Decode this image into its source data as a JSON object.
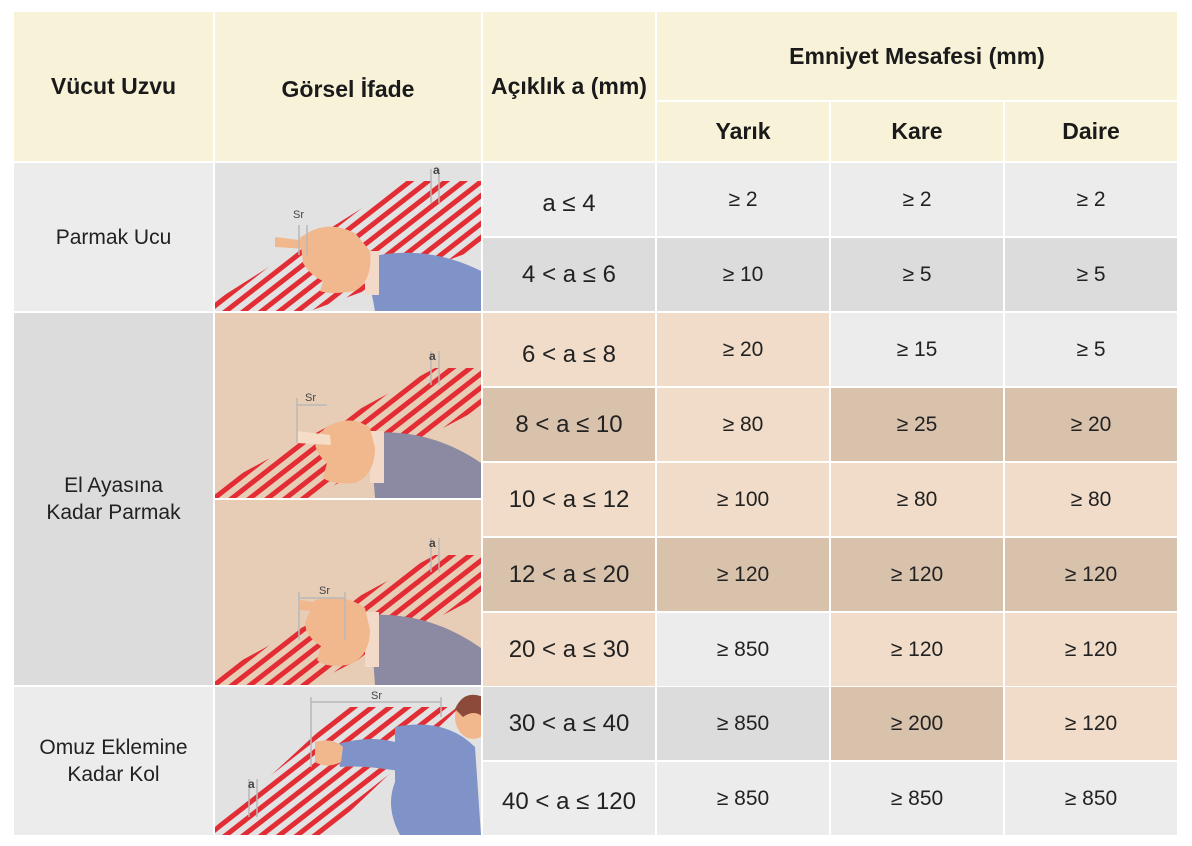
{
  "header": {
    "col_body_part": "Vücut Uzvu",
    "col_visual": "Görsel İfade",
    "col_opening": "Açıklık a (mm)",
    "col_safety": "Emniyet Mesafesi (mm)",
    "sub_slot": "Yarık",
    "sub_square": "Kare",
    "sub_round": "Daire"
  },
  "groups": [
    {
      "label": "Parmak Ucu"
    },
    {
      "label": "El Ayasına Kadar Parmak"
    },
    {
      "label": "Omuz Eklemine Kadar Kol"
    }
  ],
  "illustrations": {
    "opening_label": "a",
    "safety_label": "Sr"
  },
  "rows": [
    {
      "opening": "a ≤ 4",
      "slot": "≥ 2",
      "square": "≥ 2",
      "round": "≥ 2"
    },
    {
      "opening": "4 < a ≤ 6",
      "slot": "≥ 10",
      "square": "≥ 5",
      "round": "≥ 5"
    },
    {
      "opening": "6 < a ≤ 8",
      "slot": "≥ 20",
      "square": "≥ 15",
      "round": "≥ 5"
    },
    {
      "opening": "8 < a ≤ 10",
      "slot": "≥ 80",
      "square": "≥ 25",
      "round": "≥ 20"
    },
    {
      "opening": "10 < a ≤ 12",
      "slot": "≥ 100",
      "square": "≥ 80",
      "round": "≥ 80"
    },
    {
      "opening": "12 < a ≤ 20",
      "slot": "≥ 120",
      "square": "≥ 120",
      "round": "≥ 120"
    },
    {
      "opening": "20 < a ≤ 30",
      "slot": "≥ 850",
      "square": "≥ 120",
      "round": "≥ 120"
    },
    {
      "opening": "30 < a ≤ 40",
      "slot": "≥ 850",
      "square": "≥ 200",
      "round": "≥ 120"
    },
    {
      "opening": "40 < a ≤ 120",
      "slot": "≥ 850",
      "square": "≥ 850",
      "round": "≥ 850"
    }
  ],
  "colors": {
    "header_bg": "#f7f2d8",
    "light_gray": "#ececec",
    "mid_gray": "#dcdcdc",
    "peach_light": "#f0dcc8",
    "peach_mid": "#e3c9b2",
    "tan": "#d9c2ac",
    "hatch_red": "#e3232c"
  }
}
